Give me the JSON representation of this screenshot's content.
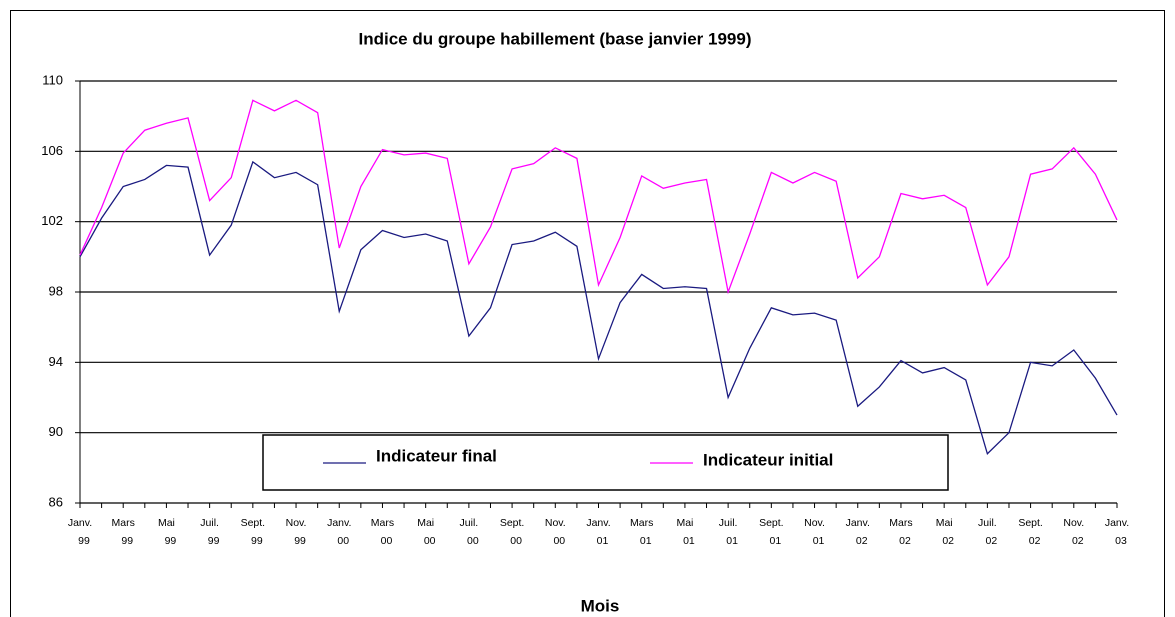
{
  "chart_data": {
    "type": "line",
    "title": "Indice du groupe habillement (base janvier 1999)",
    "x_label": "Mois",
    "categories": [
      [
        "Janv.",
        "99"
      ],
      null,
      [
        "Mars",
        "99"
      ],
      null,
      [
        "Mai",
        "99"
      ],
      null,
      [
        "Juil.",
        "99"
      ],
      null,
      [
        "Sept.",
        "99"
      ],
      null,
      [
        "Nov.",
        "99"
      ],
      null,
      [
        "Janv.",
        "00"
      ],
      null,
      [
        "Mars",
        "00"
      ],
      null,
      [
        "Mai",
        "00"
      ],
      null,
      [
        "Juil.",
        "00"
      ],
      null,
      [
        "Sept.",
        "00"
      ],
      null,
      [
        "Nov.",
        "00"
      ],
      null,
      [
        "Janv.",
        "01"
      ],
      null,
      [
        "Mars",
        "01"
      ],
      null,
      [
        "Mai",
        "01"
      ],
      null,
      [
        "Juil.",
        "01"
      ],
      null,
      [
        "Sept.",
        "01"
      ],
      null,
      [
        "Nov.",
        "01"
      ],
      null,
      [
        "Janv.",
        "02"
      ],
      null,
      [
        "Mars",
        "02"
      ],
      null,
      [
        "Mai",
        "02"
      ],
      null,
      [
        "Juil.",
        "02"
      ],
      null,
      [
        "Sept.",
        "02"
      ],
      null,
      [
        "Nov.",
        "02"
      ],
      null,
      [
        "Janv.",
        "03"
      ]
    ],
    "series": [
      {
        "name": "Indicateur final",
        "color": "#1a1a80",
        "values": [
          100.0,
          102.2,
          104.0,
          104.4,
          105.2,
          105.1,
          100.1,
          101.8,
          105.4,
          104.5,
          104.8,
          104.1,
          96.9,
          100.4,
          101.5,
          101.1,
          101.3,
          100.9,
          95.5,
          97.1,
          100.7,
          100.9,
          101.4,
          100.6,
          94.2,
          97.4,
          99.0,
          98.2,
          98.3,
          98.2,
          92.0,
          94.8,
          97.1,
          96.7,
          96.8,
          96.4,
          91.5,
          92.6,
          94.1,
          93.4,
          93.7,
          93.0,
          88.8,
          90.0,
          94.0,
          93.8,
          94.7,
          93.1,
          91.0
        ]
      },
      {
        "name": "Indicateur initial",
        "color": "#ff00ff",
        "values": [
          100.1,
          102.8,
          105.9,
          107.2,
          107.6,
          107.9,
          103.2,
          104.5,
          108.9,
          108.3,
          108.9,
          108.2,
          100.5,
          104.0,
          106.1,
          105.8,
          105.9,
          105.6,
          99.6,
          101.7,
          105.0,
          105.3,
          106.2,
          105.6,
          98.4,
          101.1,
          104.6,
          103.9,
          104.2,
          104.4,
          98.0,
          101.3,
          104.8,
          104.2,
          104.8,
          104.3,
          98.8,
          100.0,
          103.6,
          103.3,
          103.5,
          102.8,
          98.4,
          100.0,
          104.7,
          105.0,
          106.2,
          104.7,
          102.1
        ]
      }
    ],
    "ylim": [
      86,
      110
    ],
    "yticks": [
      86,
      90,
      94,
      98,
      102,
      106,
      110
    ],
    "grid": true
  }
}
